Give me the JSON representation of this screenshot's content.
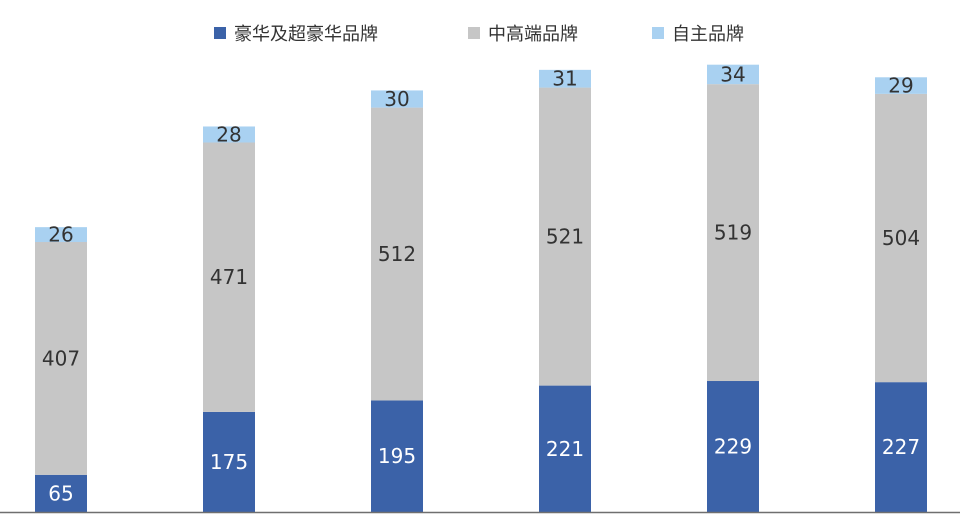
{
  "chart_data": {
    "type": "bar",
    "stacked": true,
    "categories": [
      "",
      "",
      "",
      "",
      "",
      ""
    ],
    "series": [
      {
        "name": "豪华及超豪华品牌",
        "values": [
          65,
          175,
          195,
          221,
          229,
          227
        ],
        "color": "#3b62a8",
        "label_color": "#ffffff"
      },
      {
        "name": "中高端品牌",
        "values": [
          407,
          471,
          512,
          521,
          519,
          504
        ],
        "color": "#c6c6c6",
        "label_color": "#333333"
      },
      {
        "name": "自主品牌",
        "values": [
          26,
          28,
          30,
          31,
          34,
          29
        ],
        "color": "#a9d1f1",
        "label_color": "#333333"
      }
    ],
    "title": "",
    "xlabel": "",
    "ylabel": "",
    "ylim": [
      0,
      800
    ],
    "grid": false,
    "legend_position": "top-center"
  }
}
